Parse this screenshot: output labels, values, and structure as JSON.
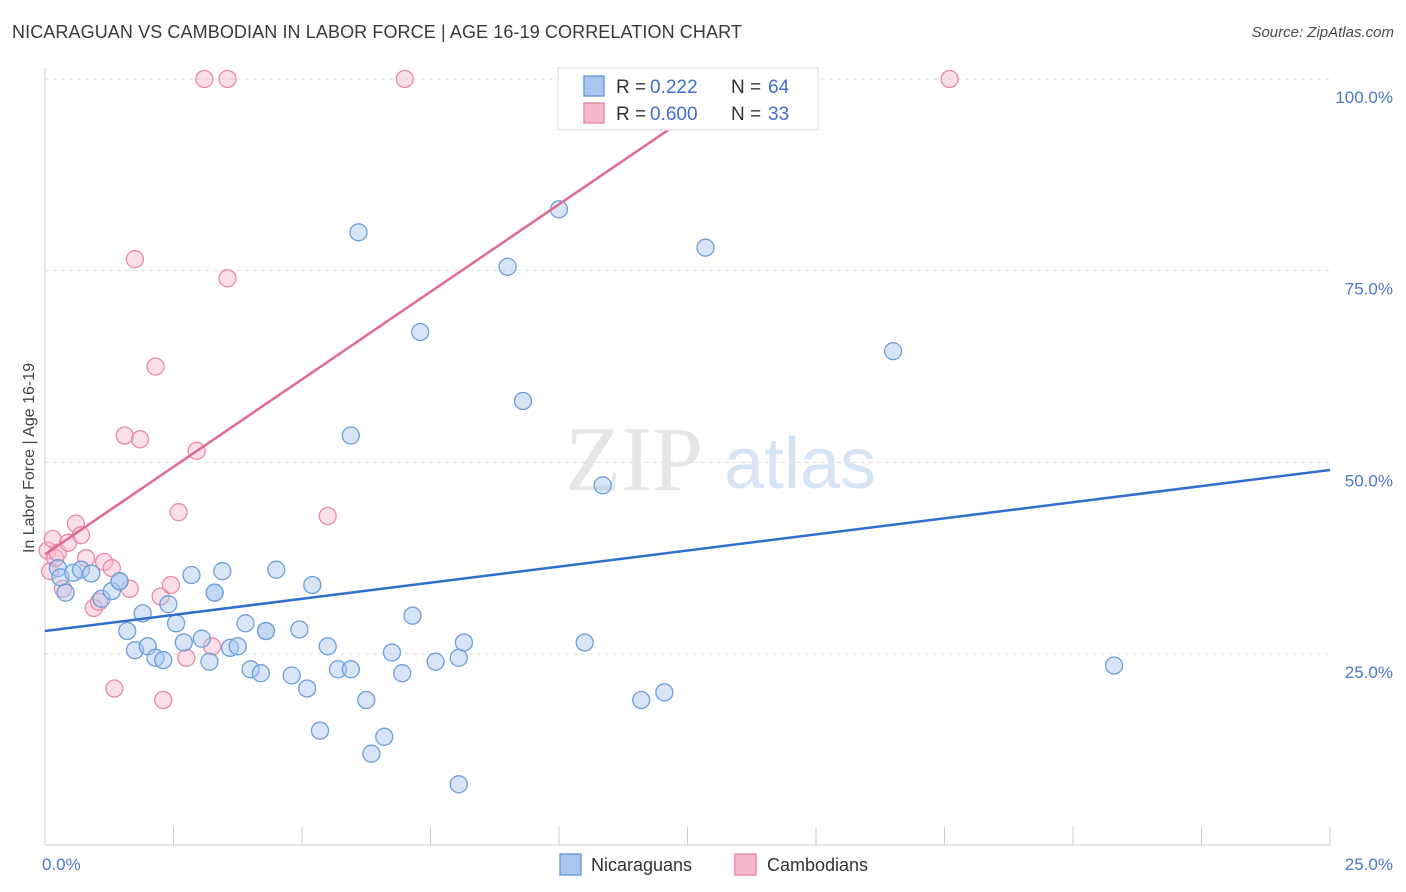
{
  "title": "NICARAGUAN VS CAMBODIAN IN LABOR FORCE | AGE 16-19 CORRELATION CHART",
  "source": "Source: ZipAtlas.com",
  "colors": {
    "blue_fill": "#a9c6ee",
    "blue_stroke": "#6d9fdc",
    "blue_line": "#2f6fd0",
    "pink_fill": "#f6b9cb",
    "pink_stroke": "#e98aa7",
    "pink_line": "#e06a94",
    "tick_text": "#4a78c8",
    "grid": "#dddddd"
  },
  "legend": {
    "rows": [
      {
        "r_label": "R =",
        "r_value": "0.222",
        "n_label": "N =",
        "n_value": "64"
      },
      {
        "r_label": "R =",
        "r_value": "0.600",
        "n_label": "N =",
        "n_value": "33"
      }
    ]
  },
  "bottom_legend": [
    "Nicaraguans",
    "Cambodians"
  ],
  "watermark": {
    "zip": "ZIP",
    "atlas": "atlas"
  },
  "chart_data": {
    "type": "scatter",
    "title": "NICARAGUAN VS CAMBODIAN IN LABOR FORCE | AGE 16-19 CORRELATION CHART",
    "xlabel": "",
    "ylabel": "In Labor Force | Age 16-19",
    "xlim": [
      0,
      25
    ],
    "ylim": [
      0,
      102
    ],
    "x_tick_labels": [
      {
        "value": 0,
        "label": "0.0%"
      },
      {
        "value": 25,
        "label": "25.0%"
      }
    ],
    "y_tick_labels": [
      {
        "value": 25,
        "label": "25.0%"
      },
      {
        "value": 50,
        "label": "50.0%"
      },
      {
        "value": 75,
        "label": "75.0%"
      },
      {
        "value": 100,
        "label": "100.0%"
      }
    ],
    "series": [
      {
        "name": "Nicaraguans",
        "R": 0.222,
        "N": 64,
        "trend": {
          "x": [
            0,
            25
          ],
          "y": [
            28.0,
            49.0
          ]
        },
        "points": [
          [
            0.25,
            36.2
          ],
          [
            0.3,
            35.0
          ],
          [
            0.4,
            33.0
          ],
          [
            0.55,
            35.6
          ],
          [
            0.7,
            36.0
          ],
          [
            0.9,
            35.5
          ],
          [
            1.1,
            32.2
          ],
          [
            1.3,
            33.2
          ],
          [
            1.45,
            34.5
          ],
          [
            1.6,
            28.0
          ],
          [
            1.75,
            25.5
          ],
          [
            1.9,
            30.3
          ],
          [
            2.0,
            26.0
          ],
          [
            2.15,
            24.5
          ],
          [
            2.4,
            31.5
          ],
          [
            2.55,
            29.0
          ],
          [
            2.7,
            26.5
          ],
          [
            2.85,
            35.3
          ],
          [
            3.05,
            27.0
          ],
          [
            3.2,
            24.0
          ],
          [
            3.3,
            33.0
          ],
          [
            3.45,
            35.8
          ],
          [
            3.6,
            25.8
          ],
          [
            3.75,
            26.0
          ],
          [
            3.9,
            29.0
          ],
          [
            4.0,
            23.0
          ],
          [
            4.2,
            22.5
          ],
          [
            4.3,
            28.0
          ],
          [
            4.5,
            36.0
          ],
          [
            4.8,
            22.2
          ],
          [
            4.95,
            28.2
          ],
          [
            5.1,
            20.5
          ],
          [
            5.2,
            34.0
          ],
          [
            5.35,
            15.0
          ],
          [
            5.5,
            26.0
          ],
          [
            5.7,
            23.0
          ],
          [
            5.95,
            23.0
          ],
          [
            6.1,
            80.0
          ],
          [
            6.25,
            19.0
          ],
          [
            6.35,
            12.0
          ],
          [
            6.6,
            14.2
          ],
          [
            6.75,
            25.2
          ],
          [
            6.95,
            22.5
          ],
          [
            7.15,
            30.0
          ],
          [
            7.3,
            67.0
          ],
          [
            7.6,
            24.0
          ],
          [
            8.05,
            24.5
          ],
          [
            8.15,
            26.5
          ],
          [
            9.0,
            75.5
          ],
          [
            9.3,
            58.0
          ],
          [
            10.0,
            83.0
          ],
          [
            10.85,
            47.0
          ],
          [
            11.6,
            19.0
          ],
          [
            12.05,
            20.0
          ],
          [
            12.85,
            78.0
          ],
          [
            16.5,
            64.5
          ],
          [
            20.8,
            23.5
          ],
          [
            5.95,
            53.5
          ],
          [
            4.3,
            28.0
          ],
          [
            2.3,
            24.2
          ],
          [
            3.3,
            33.0
          ],
          [
            8.05,
            8.0
          ],
          [
            10.5,
            26.5
          ],
          [
            1.45,
            34.5
          ]
        ]
      },
      {
        "name": "Cambodians",
        "R": 0.6,
        "N": 33,
        "trend": {
          "x": [
            0,
            13.8
          ],
          "y": [
            38.0,
            101.0
          ]
        },
        "points": [
          [
            0.05,
            38.5
          ],
          [
            0.1,
            35.8
          ],
          [
            0.15,
            40.0
          ],
          [
            0.2,
            37.5
          ],
          [
            0.25,
            38.2
          ],
          [
            0.35,
            33.5
          ],
          [
            0.45,
            39.5
          ],
          [
            0.6,
            42.0
          ],
          [
            0.7,
            40.5
          ],
          [
            0.8,
            37.5
          ],
          [
            0.95,
            31.0
          ],
          [
            1.05,
            31.8
          ],
          [
            1.15,
            37.0
          ],
          [
            1.3,
            36.2
          ],
          [
            1.35,
            20.5
          ],
          [
            1.55,
            53.5
          ],
          [
            1.65,
            33.5
          ],
          [
            1.75,
            76.5
          ],
          [
            1.85,
            53.0
          ],
          [
            2.15,
            62.5
          ],
          [
            2.25,
            32.5
          ],
          [
            2.3,
            19.0
          ],
          [
            2.45,
            34.0
          ],
          [
            2.6,
            43.5
          ],
          [
            2.75,
            24.5
          ],
          [
            2.95,
            51.5
          ],
          [
            3.1,
            100.0
          ],
          [
            3.25,
            26.0
          ],
          [
            3.55,
            74.0
          ],
          [
            3.55,
            100.0
          ],
          [
            5.5,
            43.0
          ],
          [
            7.0,
            100.0
          ],
          [
            17.6,
            100.0
          ]
        ]
      }
    ]
  }
}
